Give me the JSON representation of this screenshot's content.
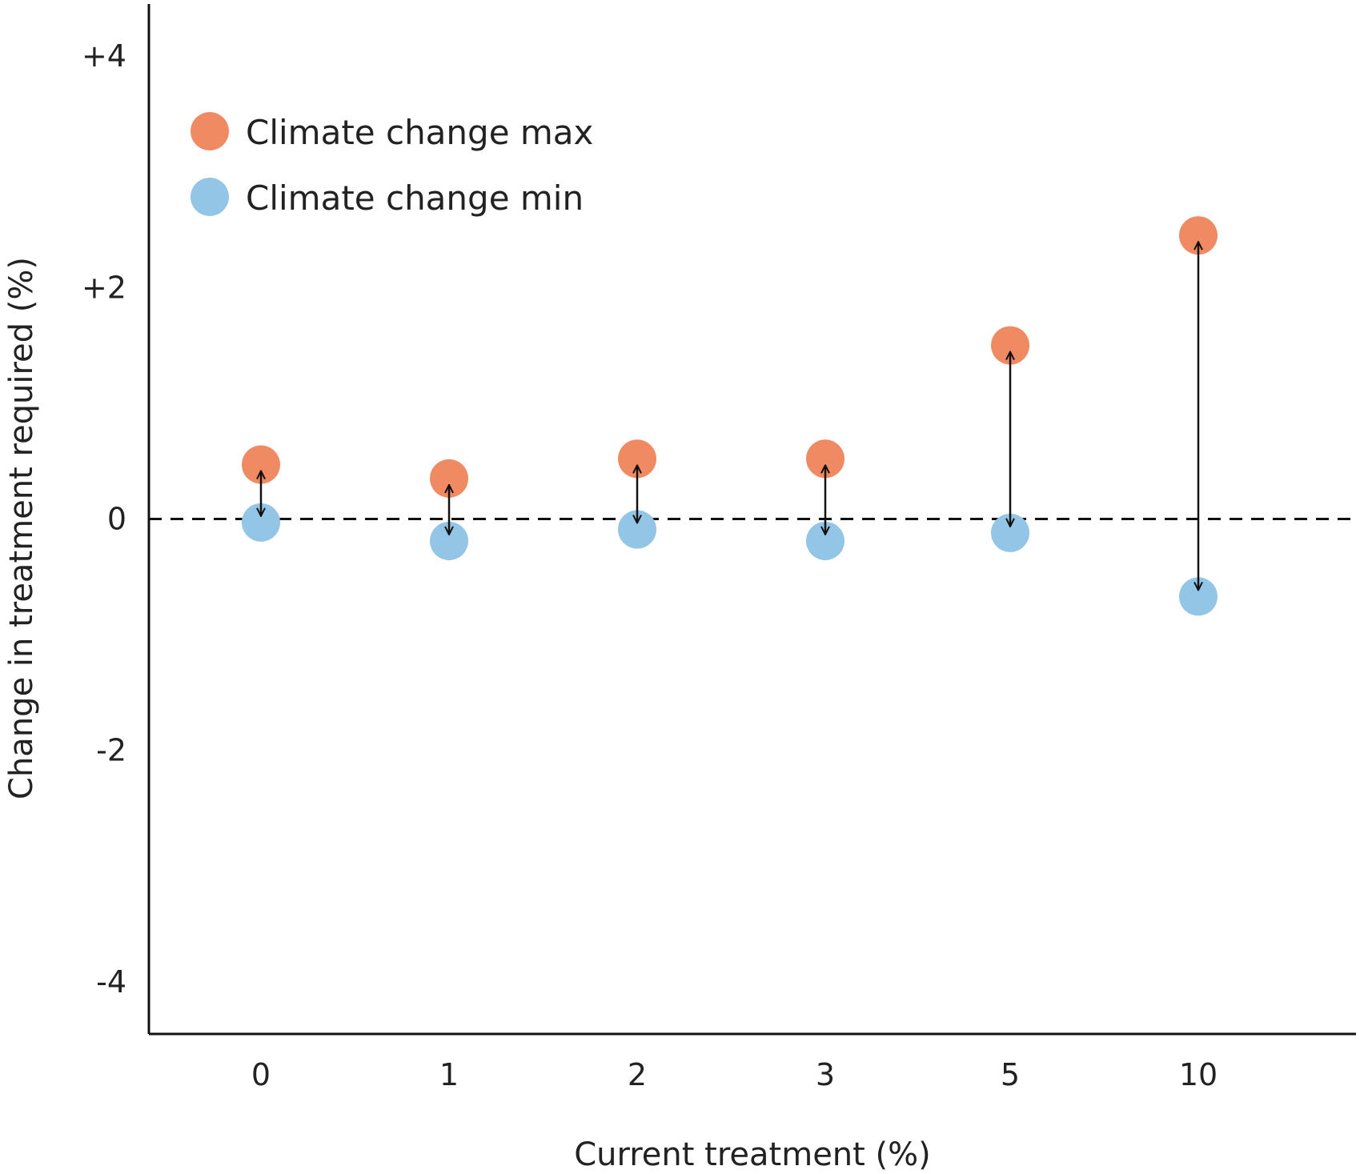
{
  "chart_data": {
    "type": "scatter",
    "title": "",
    "xlabel": "Current treatment (%)",
    "ylabel": "Change in treatment required (%)",
    "categories": [
      "0",
      "1",
      "2",
      "3",
      "5",
      "10"
    ],
    "y_ticks": [
      "+4",
      "+2",
      "0",
      "-2",
      "-4"
    ],
    "y_tick_values": [
      4,
      2,
      0,
      -2,
      -4
    ],
    "ylim": [
      -4.45,
      4.45
    ],
    "reference_line": 0,
    "grid": false,
    "legend_position": "top-left",
    "series": [
      {
        "name": "Climate change max",
        "color": "#f08a62",
        "values": [
          0.47,
          0.35,
          0.52,
          0.52,
          1.5,
          2.45
        ]
      },
      {
        "name": "Climate change min",
        "color": "#93c5e6",
        "values": [
          -0.03,
          -0.19,
          -0.09,
          -0.19,
          -0.12,
          -0.67
        ]
      }
    ]
  }
}
